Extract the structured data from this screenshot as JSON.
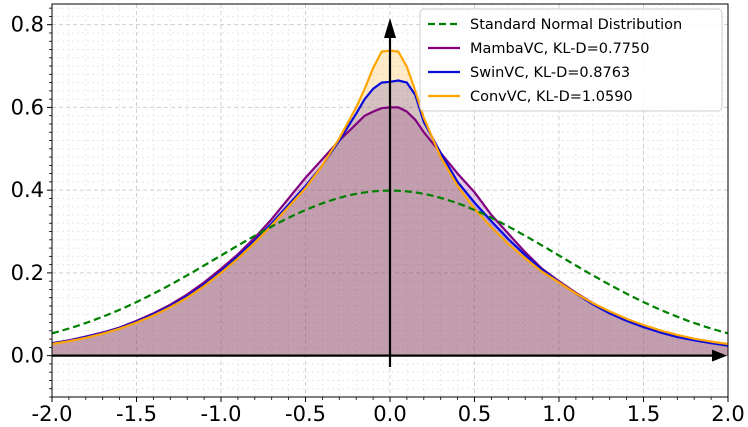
{
  "chart_data": {
    "type": "line",
    "title": "",
    "xlabel": "",
    "ylabel": "",
    "xlim": [
      -2.0,
      2.0
    ],
    "ylim": [
      -0.1,
      0.85
    ],
    "grid": true,
    "legend_position": "top-right",
    "x_ticks": [
      "-2.0",
      "-1.5",
      "-1.0",
      "-0.5",
      "0.0",
      "0.5",
      "1.0",
      "1.5",
      "2.0"
    ],
    "y_ticks": [
      "0.0",
      "0.2",
      "0.4",
      "0.6",
      "0.8"
    ],
    "x": [
      -2.0,
      -1.9,
      -1.8,
      -1.7,
      -1.6,
      -1.5,
      -1.4,
      -1.3,
      -1.2,
      -1.1,
      -1.0,
      -0.9,
      -0.8,
      -0.7,
      -0.6,
      -0.5,
      -0.4,
      -0.3,
      -0.2,
      -0.15,
      -0.1,
      -0.05,
      0.0,
      0.05,
      0.1,
      0.15,
      0.2,
      0.3,
      0.4,
      0.5,
      0.6,
      0.7,
      0.8,
      0.9,
      1.0,
      1.1,
      1.2,
      1.3,
      1.4,
      1.5,
      1.6,
      1.7,
      1.8,
      1.9,
      2.0
    ],
    "series": [
      {
        "name": "MambaVC, KL-D=0.7750",
        "color": "#800080",
        "style": "solid",
        "filled": true,
        "values": [
          0.03,
          0.037,
          0.046,
          0.056,
          0.068,
          0.084,
          0.102,
          0.123,
          0.148,
          0.177,
          0.21,
          0.245,
          0.285,
          0.33,
          0.38,
          0.43,
          0.475,
          0.52,
          0.56,
          0.58,
          0.59,
          0.598,
          0.6,
          0.6,
          0.59,
          0.57,
          0.54,
          0.49,
          0.44,
          0.395,
          0.34,
          0.295,
          0.25,
          0.21,
          0.18,
          0.152,
          0.127,
          0.105,
          0.087,
          0.07,
          0.058,
          0.047,
          0.038,
          0.031,
          0.025
        ]
      },
      {
        "name": "SwinVC, KL-D=0.8763",
        "color": "#0a0adc",
        "style": "solid",
        "filled": true,
        "values": [
          0.03,
          0.036,
          0.045,
          0.055,
          0.067,
          0.082,
          0.1,
          0.12,
          0.144,
          0.172,
          0.204,
          0.24,
          0.278,
          0.32,
          0.365,
          0.41,
          0.46,
          0.52,
          0.585,
          0.62,
          0.645,
          0.66,
          0.662,
          0.665,
          0.66,
          0.63,
          0.565,
          0.49,
          0.42,
          0.37,
          0.325,
          0.282,
          0.243,
          0.208,
          0.178,
          0.15,
          0.124,
          0.102,
          0.084,
          0.069,
          0.056,
          0.045,
          0.037,
          0.03,
          0.024
        ]
      },
      {
        "name": "ConvVC, KL-D=1.0590",
        "color": "#ffa500",
        "style": "solid",
        "filled": true,
        "values": [
          0.028,
          0.035,
          0.043,
          0.053,
          0.065,
          0.08,
          0.097,
          0.117,
          0.14,
          0.168,
          0.2,
          0.235,
          0.273,
          0.315,
          0.36,
          0.405,
          0.46,
          0.525,
          0.6,
          0.645,
          0.695,
          0.735,
          0.737,
          0.735,
          0.698,
          0.64,
          0.575,
          0.48,
          0.41,
          0.355,
          0.31,
          0.27,
          0.235,
          0.203,
          0.177,
          0.15,
          0.127,
          0.107,
          0.089,
          0.074,
          0.061,
          0.05,
          0.041,
          0.034,
          0.028
        ]
      },
      {
        "name": "Standard Normal Distribution",
        "color": "#008000",
        "style": "dashed",
        "filled": false,
        "function": "standard_normal_pdf"
      }
    ]
  }
}
